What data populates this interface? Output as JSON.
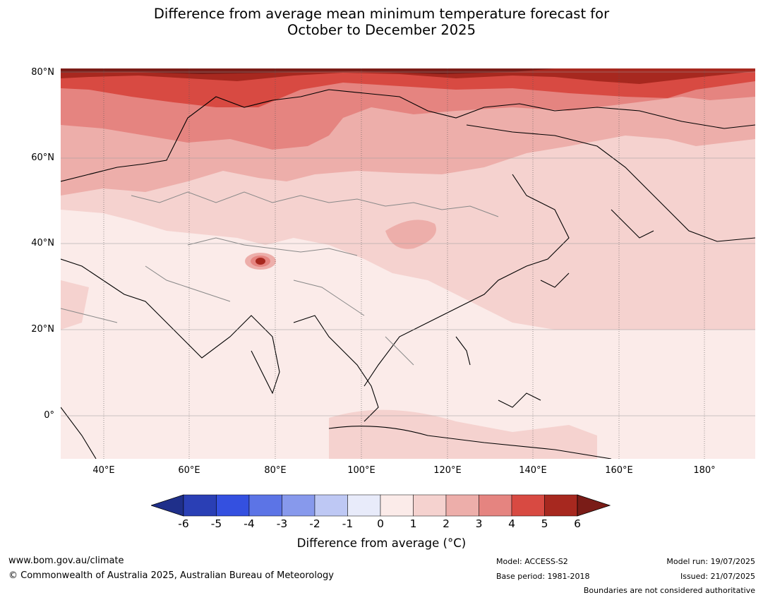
{
  "title": {
    "line1": "Difference from average mean minimum temperature forecast for",
    "line2": "October to December 2025"
  },
  "map": {
    "region": "Asia",
    "latitude_labels": [
      "80°N",
      "60°N",
      "40°N",
      "20°N",
      "0°"
    ],
    "longitude_labels": [
      "40°E",
      "60°E",
      "80°E",
      "100°E",
      "120°E",
      "140°E",
      "160°E",
      "180°"
    ],
    "anomaly_regions": [
      {
        "area": "Arctic coast of Siberia",
        "anomaly_range_c": "4 to 6"
      },
      {
        "area": "Northern Siberia",
        "anomaly_range_c": "2 to 4"
      },
      {
        "area": "Central Asia and Mongolia",
        "anomaly_range_c": "1 to 2"
      },
      {
        "area": "India and Southeast Asia",
        "anomaly_range_c": "0 to 1"
      },
      {
        "area": "Western Tibet hotspot",
        "anomaly_range_c": "3 to 6"
      }
    ]
  },
  "colorbar": {
    "ticks": [
      "-6",
      "-5",
      "-4",
      "-3",
      "-2",
      "-1",
      "0",
      "1",
      "2",
      "3",
      "4",
      "5",
      "6"
    ],
    "colors": [
      "#1f2f8a",
      "#2a3fb5",
      "#3450e0",
      "#5c74e6",
      "#8799ec",
      "#bec8f4",
      "#e8ebfa",
      "#fbebe9",
      "#f5d2cf",
      "#edaeaa",
      "#e58480",
      "#d84a42",
      "#a7281f",
      "#7a1c17"
    ],
    "label": "Difference from average (°C)"
  },
  "footer": {
    "website": "www.bom.gov.au/climate",
    "copyright": "© Commonwealth of Australia 2025, Australian Bureau of Meteorology",
    "model": "Model: ACCESS-S2",
    "base_period": "Base period: 1981-2018",
    "model_run": "Model run: 19/07/2025",
    "issued": "Issued: 21/07/2025",
    "disclaimer": "Boundaries are not considered authoritative"
  }
}
